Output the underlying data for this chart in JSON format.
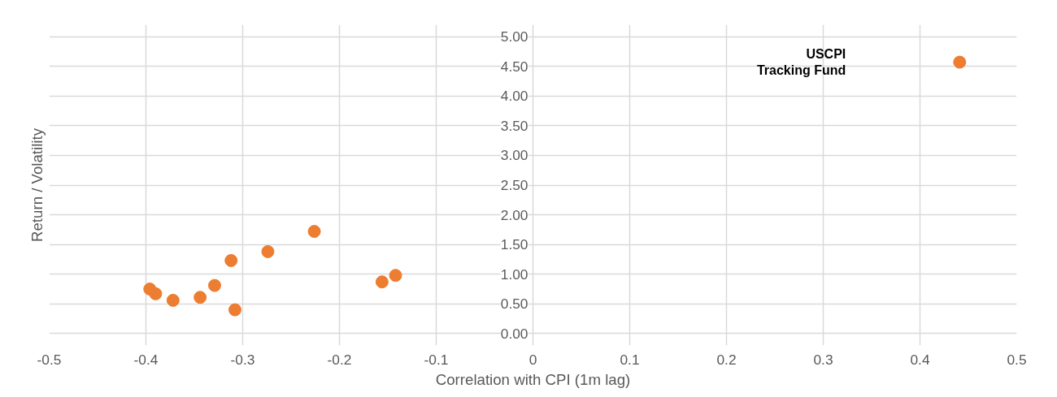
{
  "chart_data": {
    "type": "scatter",
    "xlabel": "Correlation with CPI (1m lag)",
    "ylabel": "Return / Volatility",
    "x": [
      -0.396,
      -0.39,
      -0.372,
      -0.344,
      -0.329,
      -0.312,
      -0.308,
      -0.274,
      -0.226,
      -0.156,
      -0.142,
      0.441
    ],
    "series": [
      {
        "color": "#ed7d31",
        "values": [
          0.75,
          0.67,
          0.56,
          0.61,
          0.81,
          1.23,
          0.4,
          1.38,
          1.72,
          0.87,
          0.98,
          4.57
        ]
      }
    ],
    "xlim": [
      -0.5,
      0.5
    ],
    "xticks": [
      -0.5,
      -0.4,
      -0.3,
      -0.2,
      -0.1,
      0,
      0.1,
      0.2,
      0.3,
      0.4,
      0.5
    ],
    "ylim": [
      0,
      5
    ],
    "yticks": [
      {
        "value": 0,
        "label": "0.00"
      },
      {
        "value": 0.5,
        "label": "0.50"
      },
      {
        "value": 1,
        "label": "1.00"
      },
      {
        "value": 1.5,
        "label": "1.50"
      },
      {
        "value": 2,
        "label": "2.00"
      },
      {
        "value": 2.5,
        "label": "2.50"
      },
      {
        "value": 3,
        "label": "3.00"
      },
      {
        "value": 3.5,
        "label": "3.50"
      },
      {
        "value": 4,
        "label": "4.00"
      },
      {
        "value": 4.5,
        "label": "4.50"
      },
      {
        "value": 5,
        "label": "5.00"
      }
    ],
    "grid": true,
    "marker": "circle",
    "annotations": [
      "USCPI\nTracking Fund"
    ]
  }
}
